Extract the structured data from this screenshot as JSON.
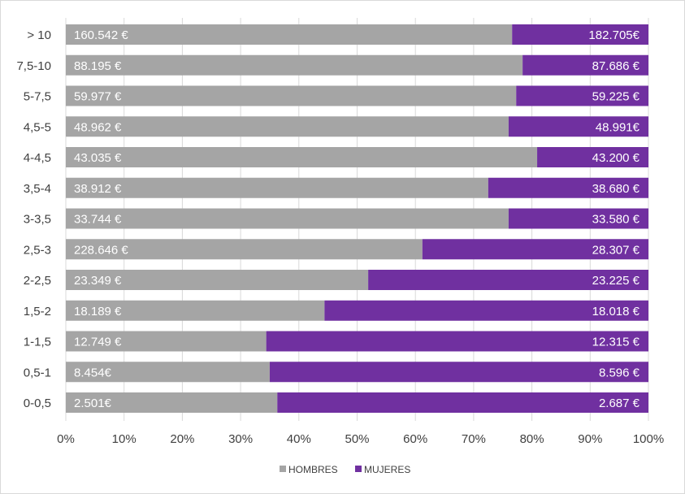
{
  "chart_data": {
    "type": "bar",
    "orientation": "horizontal",
    "stacked": "percent",
    "categories": [
      "> 10",
      "7,5-10",
      "5-7,5",
      "4,5-5",
      "4-4,5",
      "3,5-4",
      "3-3,5",
      "2,5-3",
      "2-2,5",
      "1,5-2",
      "1-1,5",
      "0,5-1",
      "0-0,5"
    ],
    "series": [
      {
        "name": "HOMBRES",
        "color": "#A5A5A5",
        "share_percent": [
          76.6,
          78.4,
          77.3,
          76.0,
          80.9,
          72.5,
          76.0,
          61.2,
          51.9,
          44.4,
          34.4,
          35.0,
          36.3
        ],
        "data_labels": [
          "160.542 €",
          "88.195 €",
          "59.977 €",
          "48.962 €",
          "43.035 €",
          "38.912 €",
          "33.744 €",
          "228.646 €",
          "23.349 €",
          "18.189 €",
          "12.749 €",
          "8.454€",
          "2.501€"
        ]
      },
      {
        "name": "MUJERES",
        "color": "#7030A0",
        "share_percent": [
          23.4,
          21.6,
          22.7,
          24.0,
          19.1,
          27.5,
          24.0,
          38.8,
          48.1,
          55.6,
          65.6,
          65.0,
          63.7
        ],
        "data_labels": [
          "182.705€",
          "87.686 €",
          "59.225 €",
          "48.991€",
          "43.200 €",
          "38.680 €",
          "33.580 €",
          "28.307 €",
          "23.225 €",
          "18.018 €",
          "12.315 €",
          "8.596 €",
          "2.687 €"
        ]
      }
    ],
    "x_ticks": [
      "0%",
      "10%",
      "20%",
      "30%",
      "40%",
      "50%",
      "60%",
      "70%",
      "80%",
      "90%",
      "100%"
    ],
    "xlim": [
      0,
      100
    ],
    "grid": "vertical",
    "legend": "bottom"
  }
}
